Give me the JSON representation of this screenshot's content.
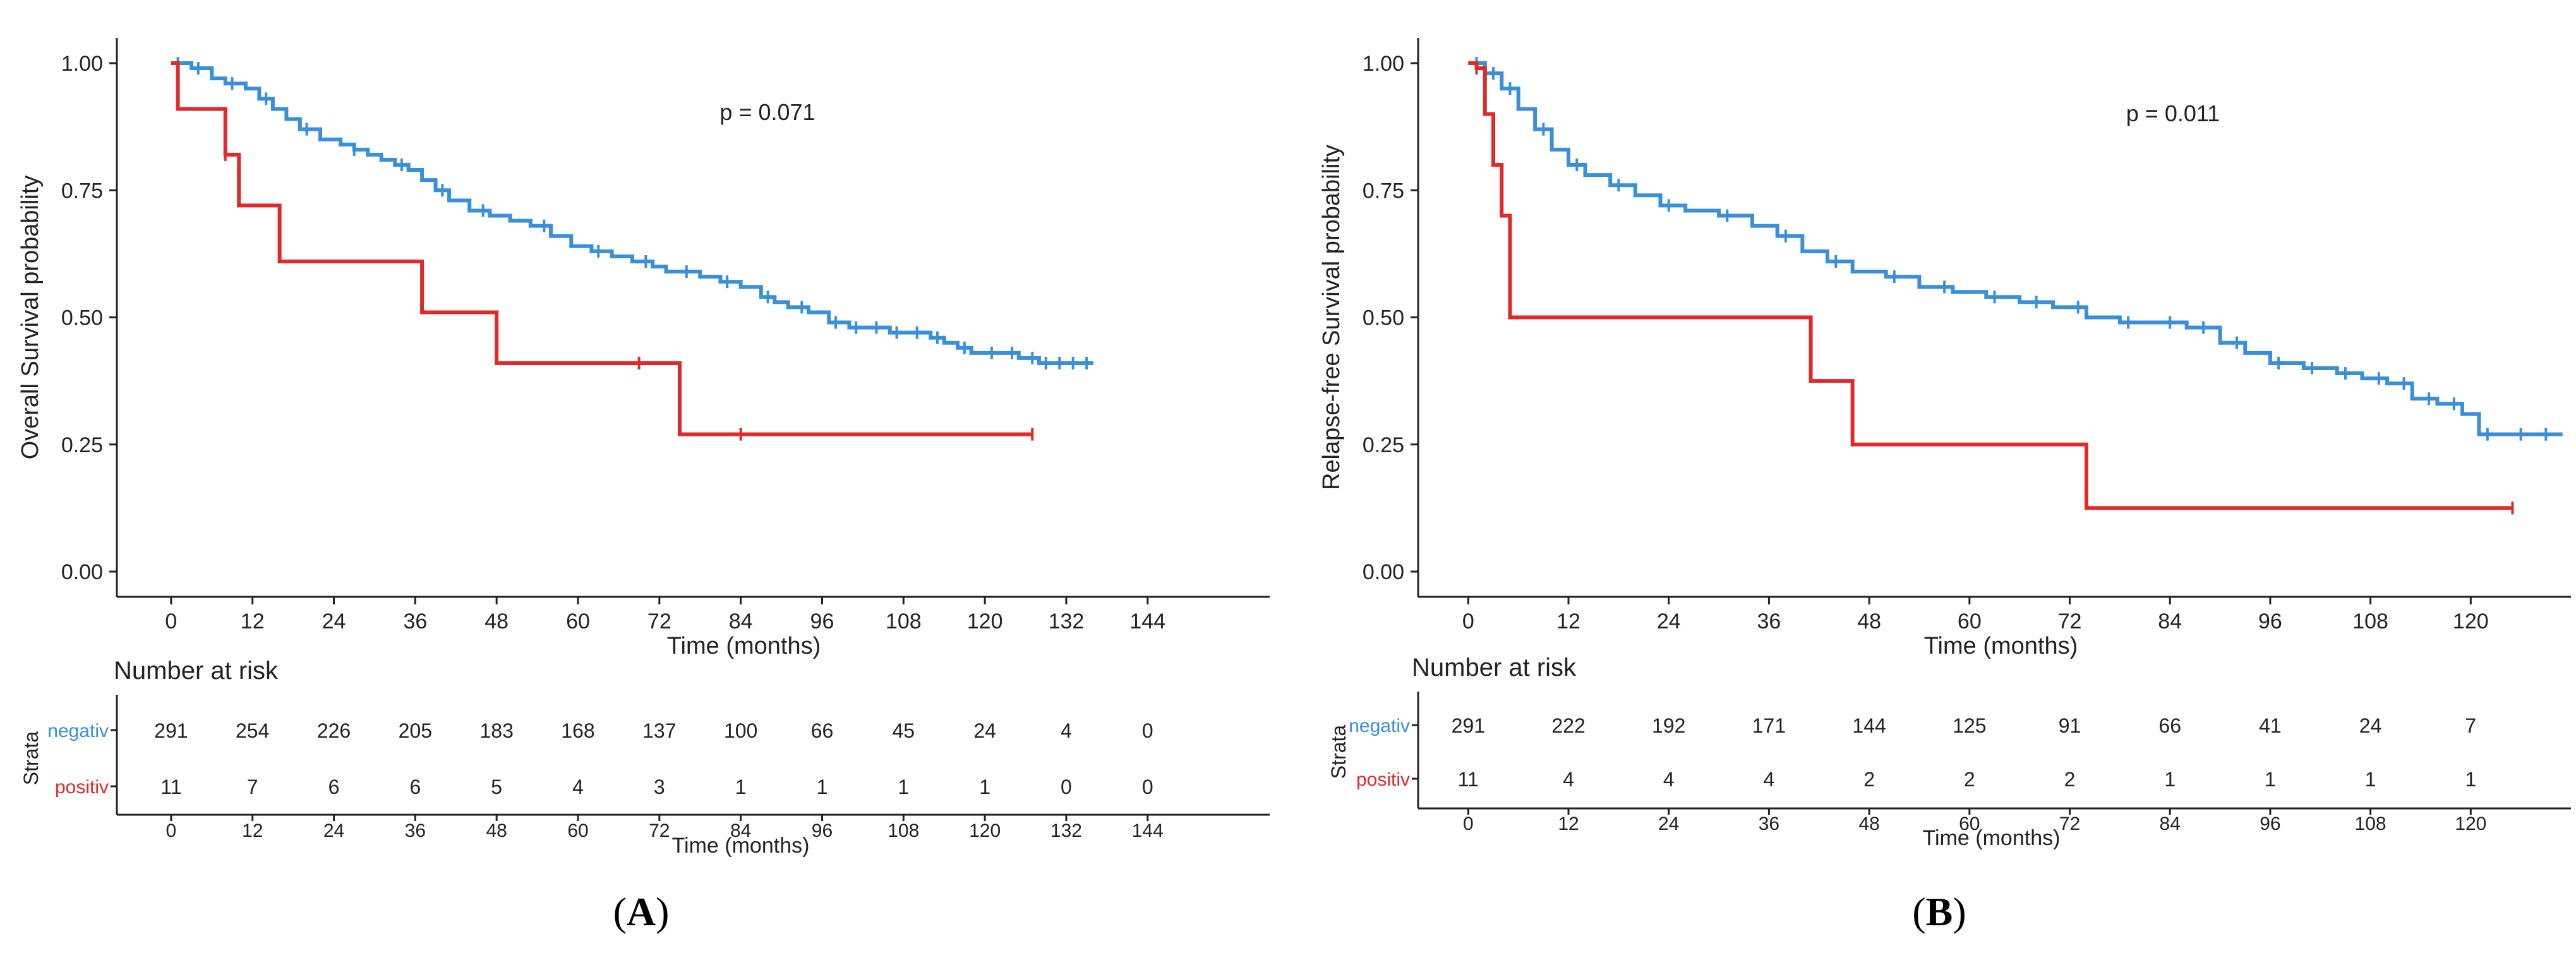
{
  "colors": {
    "negativ": "#3a8fd9",
    "positiv": "#e02a2a",
    "axis": "#222222"
  },
  "chart_data": [
    {
      "type": "line",
      "panel_label": "(A)",
      "title": "",
      "xlabel": "Time (months)",
      "ylabel": "Overall Survival probability",
      "xlim": [
        -8,
        162
      ],
      "ylim": [
        0,
        1
      ],
      "x_ticks": [
        "0",
        "12",
        "24",
        "36",
        "48",
        "60",
        "72",
        "84",
        "96",
        "108",
        "120",
        "132",
        "144"
      ],
      "y_ticks": [
        "0.00",
        "0.25",
        "0.50",
        "0.75",
        "1.00"
      ],
      "annotation": "p = 0.071",
      "series": [
        {
          "name": "negativ",
          "x": [
            0,
            3,
            6,
            8,
            11,
            13,
            15,
            17,
            19,
            22,
            25,
            27,
            29,
            31,
            33,
            35,
            37,
            39,
            41,
            44,
            47,
            50,
            53,
            56,
            59,
            62,
            65,
            68,
            71,
            73,
            75,
            78,
            81,
            84,
            87,
            89,
            91,
            94,
            97,
            100,
            103,
            106,
            109,
            112,
            114,
            116,
            118,
            120,
            122,
            125,
            128,
            131,
            134,
            136
          ],
          "y": [
            1.0,
            0.99,
            0.97,
            0.96,
            0.95,
            0.93,
            0.91,
            0.89,
            0.87,
            0.85,
            0.84,
            0.83,
            0.82,
            0.81,
            0.8,
            0.79,
            0.77,
            0.75,
            0.73,
            0.71,
            0.7,
            0.69,
            0.68,
            0.66,
            0.64,
            0.63,
            0.62,
            0.61,
            0.6,
            0.59,
            0.59,
            0.58,
            0.57,
            0.56,
            0.54,
            0.53,
            0.52,
            0.51,
            0.49,
            0.48,
            0.48,
            0.47,
            0.47,
            0.46,
            0.45,
            0.44,
            0.43,
            0.43,
            0.43,
            0.42,
            0.41,
            0.41,
            0.41,
            0.41
          ],
          "censor_x": [
            1,
            4,
            9,
            14,
            20,
            27,
            34,
            40,
            46,
            55,
            63,
            70,
            76,
            82,
            88,
            93,
            98,
            101,
            104,
            107,
            110,
            113,
            117,
            121,
            124,
            127,
            129,
            131,
            133,
            135
          ]
        },
        {
          "name": "positiv",
          "x": [
            0,
            1,
            8,
            9,
            10,
            16,
            37,
            48,
            69,
            75,
            84,
            127
          ],
          "y": [
            1.0,
            0.91,
            0.82,
            0.82,
            0.72,
            0.61,
            0.51,
            0.41,
            0.41,
            0.27,
            0.27,
            0.27
          ],
          "censor_x": [
            8,
            69,
            84,
            127
          ]
        }
      ],
      "risk_table": {
        "title": "Number at risk",
        "xlabel": "Time (months)",
        "strata_label": "Strata",
        "x_ticks": [
          "0",
          "12",
          "24",
          "36",
          "48",
          "60",
          "72",
          "84",
          "96",
          "108",
          "120",
          "132",
          "144"
        ],
        "rows": [
          {
            "name": "negativ",
            "values": [
              "291",
              "254",
              "226",
              "205",
              "183",
              "168",
              "137",
              "100",
              "66",
              "45",
              "24",
              "4",
              "0"
            ]
          },
          {
            "name": "positiv",
            "values": [
              "11",
              "7",
              "6",
              "6",
              "5",
              "4",
              "3",
              "1",
              "1",
              "1",
              "1",
              "0",
              "0"
            ]
          }
        ]
      }
    },
    {
      "type": "line",
      "panel_label": "(B)",
      "title": "",
      "xlabel": "Time (months)",
      "ylabel": "Relapse-free Survival probability",
      "xlim": [
        -6,
        132
      ],
      "ylim": [
        0,
        1
      ],
      "x_ticks": [
        "0",
        "12",
        "24",
        "36",
        "48",
        "60",
        "72",
        "84",
        "96",
        "108",
        "120"
      ],
      "y_ticks": [
        "0.00",
        "0.25",
        "0.50",
        "0.75",
        "1.00"
      ],
      "annotation": "p = 0.011",
      "series": [
        {
          "name": "negativ",
          "x": [
            0,
            2,
            4,
            6,
            8,
            10,
            12,
            14,
            17,
            20,
            23,
            26,
            30,
            34,
            37,
            40,
            43,
            46,
            50,
            54,
            58,
            62,
            66,
            70,
            74,
            78,
            82,
            86,
            90,
            93,
            96,
            100,
            104,
            107,
            110,
            113,
            116,
            119,
            121,
            124,
            128,
            131
          ],
          "y": [
            1.0,
            0.98,
            0.95,
            0.91,
            0.87,
            0.83,
            0.8,
            0.78,
            0.76,
            0.74,
            0.72,
            0.71,
            0.7,
            0.68,
            0.66,
            0.63,
            0.61,
            0.59,
            0.58,
            0.56,
            0.55,
            0.54,
            0.53,
            0.52,
            0.5,
            0.49,
            0.49,
            0.48,
            0.45,
            0.43,
            0.41,
            0.4,
            0.39,
            0.38,
            0.37,
            0.34,
            0.33,
            0.31,
            0.27,
            0.27,
            0.27,
            0.27
          ],
          "censor_x": [
            1,
            3,
            5,
            9,
            13,
            18,
            24,
            31,
            38,
            44,
            51,
            57,
            63,
            68,
            73,
            79,
            84,
            88,
            92,
            97,
            101,
            105,
            109,
            112,
            115,
            118,
            122,
            126,
            129
          ]
        },
        {
          "name": "positiv",
          "x": [
            0,
            1,
            2,
            3,
            4,
            5,
            41,
            46,
            74,
            125
          ],
          "y": [
            1.0,
            0.99,
            0.9,
            0.8,
            0.7,
            0.5,
            0.375,
            0.25,
            0.125,
            0.125
          ],
          "censor_x": [
            1,
            125
          ]
        }
      ],
      "risk_table": {
        "title": "Number at risk",
        "xlabel": "Time (months)",
        "strata_label": "Strata",
        "x_ticks": [
          "0",
          "12",
          "24",
          "36",
          "48",
          "60",
          "72",
          "84",
          "96",
          "108",
          "120"
        ],
        "rows": [
          {
            "name": "negativ",
            "values": [
              "291",
              "222",
              "192",
              "171",
              "144",
              "125",
              "91",
              "66",
              "41",
              "24",
              "7"
            ]
          },
          {
            "name": "positiv",
            "values": [
              "11",
              "4",
              "4",
              "4",
              "2",
              "2",
              "2",
              "1",
              "1",
              "1",
              "1"
            ]
          }
        ]
      }
    }
  ]
}
